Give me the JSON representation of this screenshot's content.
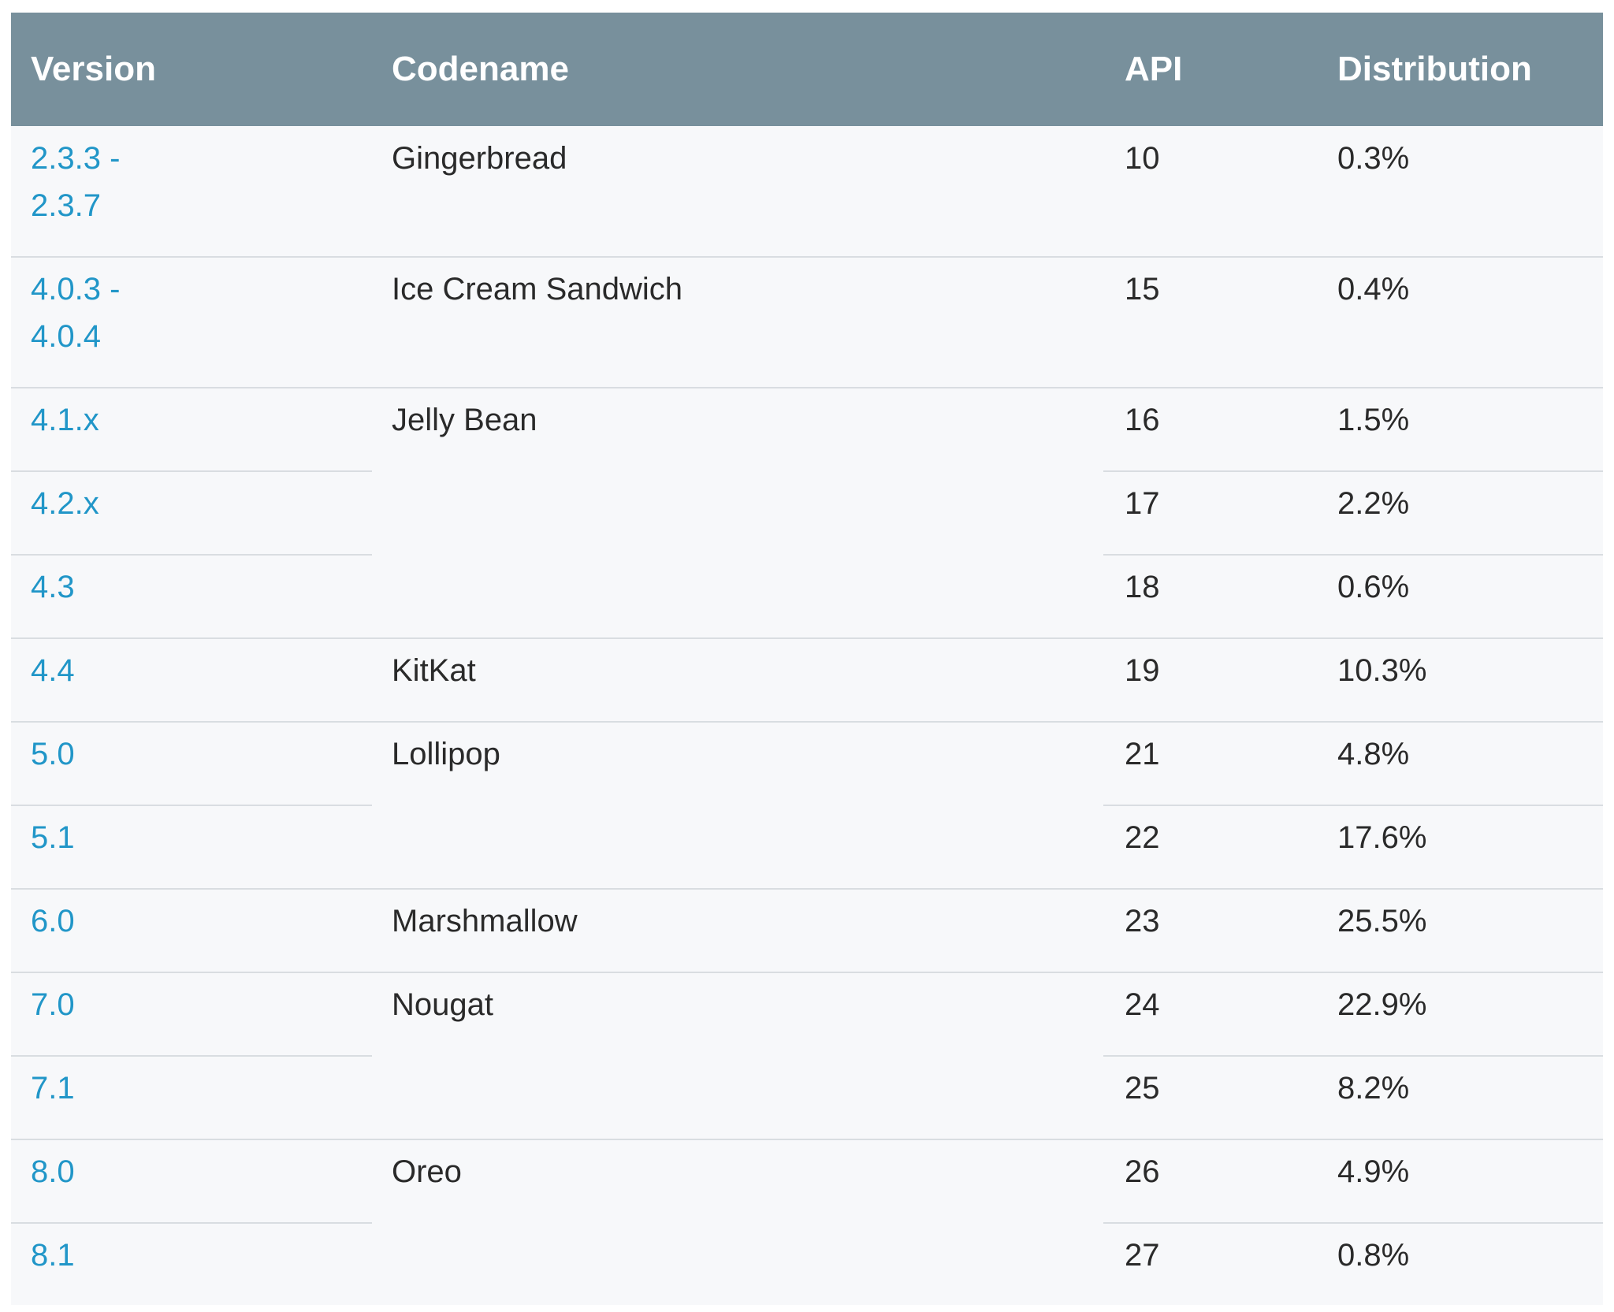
{
  "chart_data": {
    "type": "table",
    "columns": [
      "Version",
      "Codename",
      "API",
      "Distribution"
    ],
    "rows": [
      {
        "version": "2.3.3 -\n2.3.7",
        "codename": "Gingerbread",
        "api": "10",
        "distribution": "0.3%"
      },
      {
        "version": "4.0.3 -\n4.0.4",
        "codename": "Ice Cream Sandwich",
        "api": "15",
        "distribution": "0.4%"
      },
      {
        "version": "4.1.x",
        "codename": "Jelly Bean",
        "api": "16",
        "distribution": "1.5%"
      },
      {
        "version": "4.2.x",
        "codename": "",
        "api": "17",
        "distribution": "2.2%"
      },
      {
        "version": "4.3",
        "codename": "",
        "api": "18",
        "distribution": "0.6%"
      },
      {
        "version": "4.4",
        "codename": "KitKat",
        "api": "19",
        "distribution": "10.3%"
      },
      {
        "version": "5.0",
        "codename": "Lollipop",
        "api": "21",
        "distribution": "4.8%"
      },
      {
        "version": "5.1",
        "codename": "",
        "api": "22",
        "distribution": "17.6%"
      },
      {
        "version": "6.0",
        "codename": "Marshmallow",
        "api": "23",
        "distribution": "25.5%"
      },
      {
        "version": "7.0",
        "codename": "Nougat",
        "api": "24",
        "distribution": "22.9%"
      },
      {
        "version": "7.1",
        "codename": "",
        "api": "25",
        "distribution": "8.2%"
      },
      {
        "version": "8.0",
        "codename": "Oreo",
        "api": "26",
        "distribution": "4.9%"
      },
      {
        "version": "8.1",
        "codename": "",
        "api": "27",
        "distribution": "0.8%"
      }
    ]
  },
  "colors": {
    "header_background": "#78909c",
    "header_text": "#ffffff",
    "version_link": "#2196c8",
    "body_text": "#2a2a2a",
    "table_background": "#f7f8fa",
    "divider": "#d9dde1"
  }
}
